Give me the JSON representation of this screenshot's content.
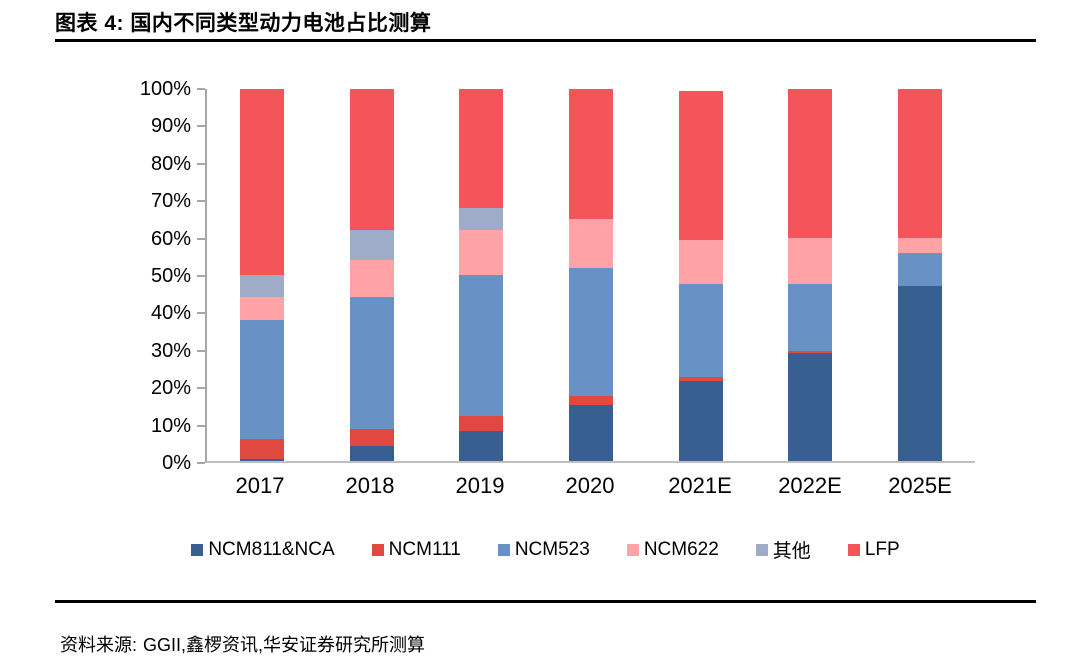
{
  "title": "图表 4: 国内不同类型动力电池占比测算",
  "source": {
    "label": "资料来源:",
    "text": "GGII,鑫椤资讯,华安证券研究所测算"
  },
  "chart_data": {
    "type": "bar",
    "stacked": true,
    "title": "国内不同类型动力电池占比测算",
    "categories": [
      "2017",
      "2018",
      "2019",
      "2020",
      "2021E",
      "2022E",
      "2025E"
    ],
    "series": [
      {
        "name": "NCM811&NCA",
        "color": "#375F90",
        "values": [
          0.5,
          4,
          8,
          15,
          21.5,
          29,
          47
        ]
      },
      {
        "name": "NCM111",
        "color": "#E0493F",
        "values": [
          5.5,
          4.5,
          4,
          2.5,
          1,
          0.7,
          0
        ]
      },
      {
        "name": "NCM523",
        "color": "#6891C5",
        "values": [
          32,
          35.5,
          38,
          34.5,
          25,
          17.8,
          9
        ]
      },
      {
        "name": "NCM622",
        "color": "#FFA3A6",
        "values": [
          6,
          10,
          12,
          13,
          12,
          12.5,
          4
        ]
      },
      {
        "name": "其他",
        "color": "#9FACC7",
        "values": [
          6,
          8,
          6,
          0,
          0,
          0,
          0
        ]
      },
      {
        "name": "LFP",
        "color": "#F4555A",
        "values": [
          50,
          38,
          32,
          35,
          40,
          40,
          40
        ]
      }
    ],
    "yticks": [
      "100%",
      "90%",
      "80%",
      "70%",
      "60%",
      "50%",
      "40%",
      "30%",
      "20%",
      "10%",
      "0%"
    ],
    "ylim": [
      0,
      100
    ],
    "grid": false,
    "legend_position": "bottom",
    "axis_color": "#a6a6a6"
  }
}
